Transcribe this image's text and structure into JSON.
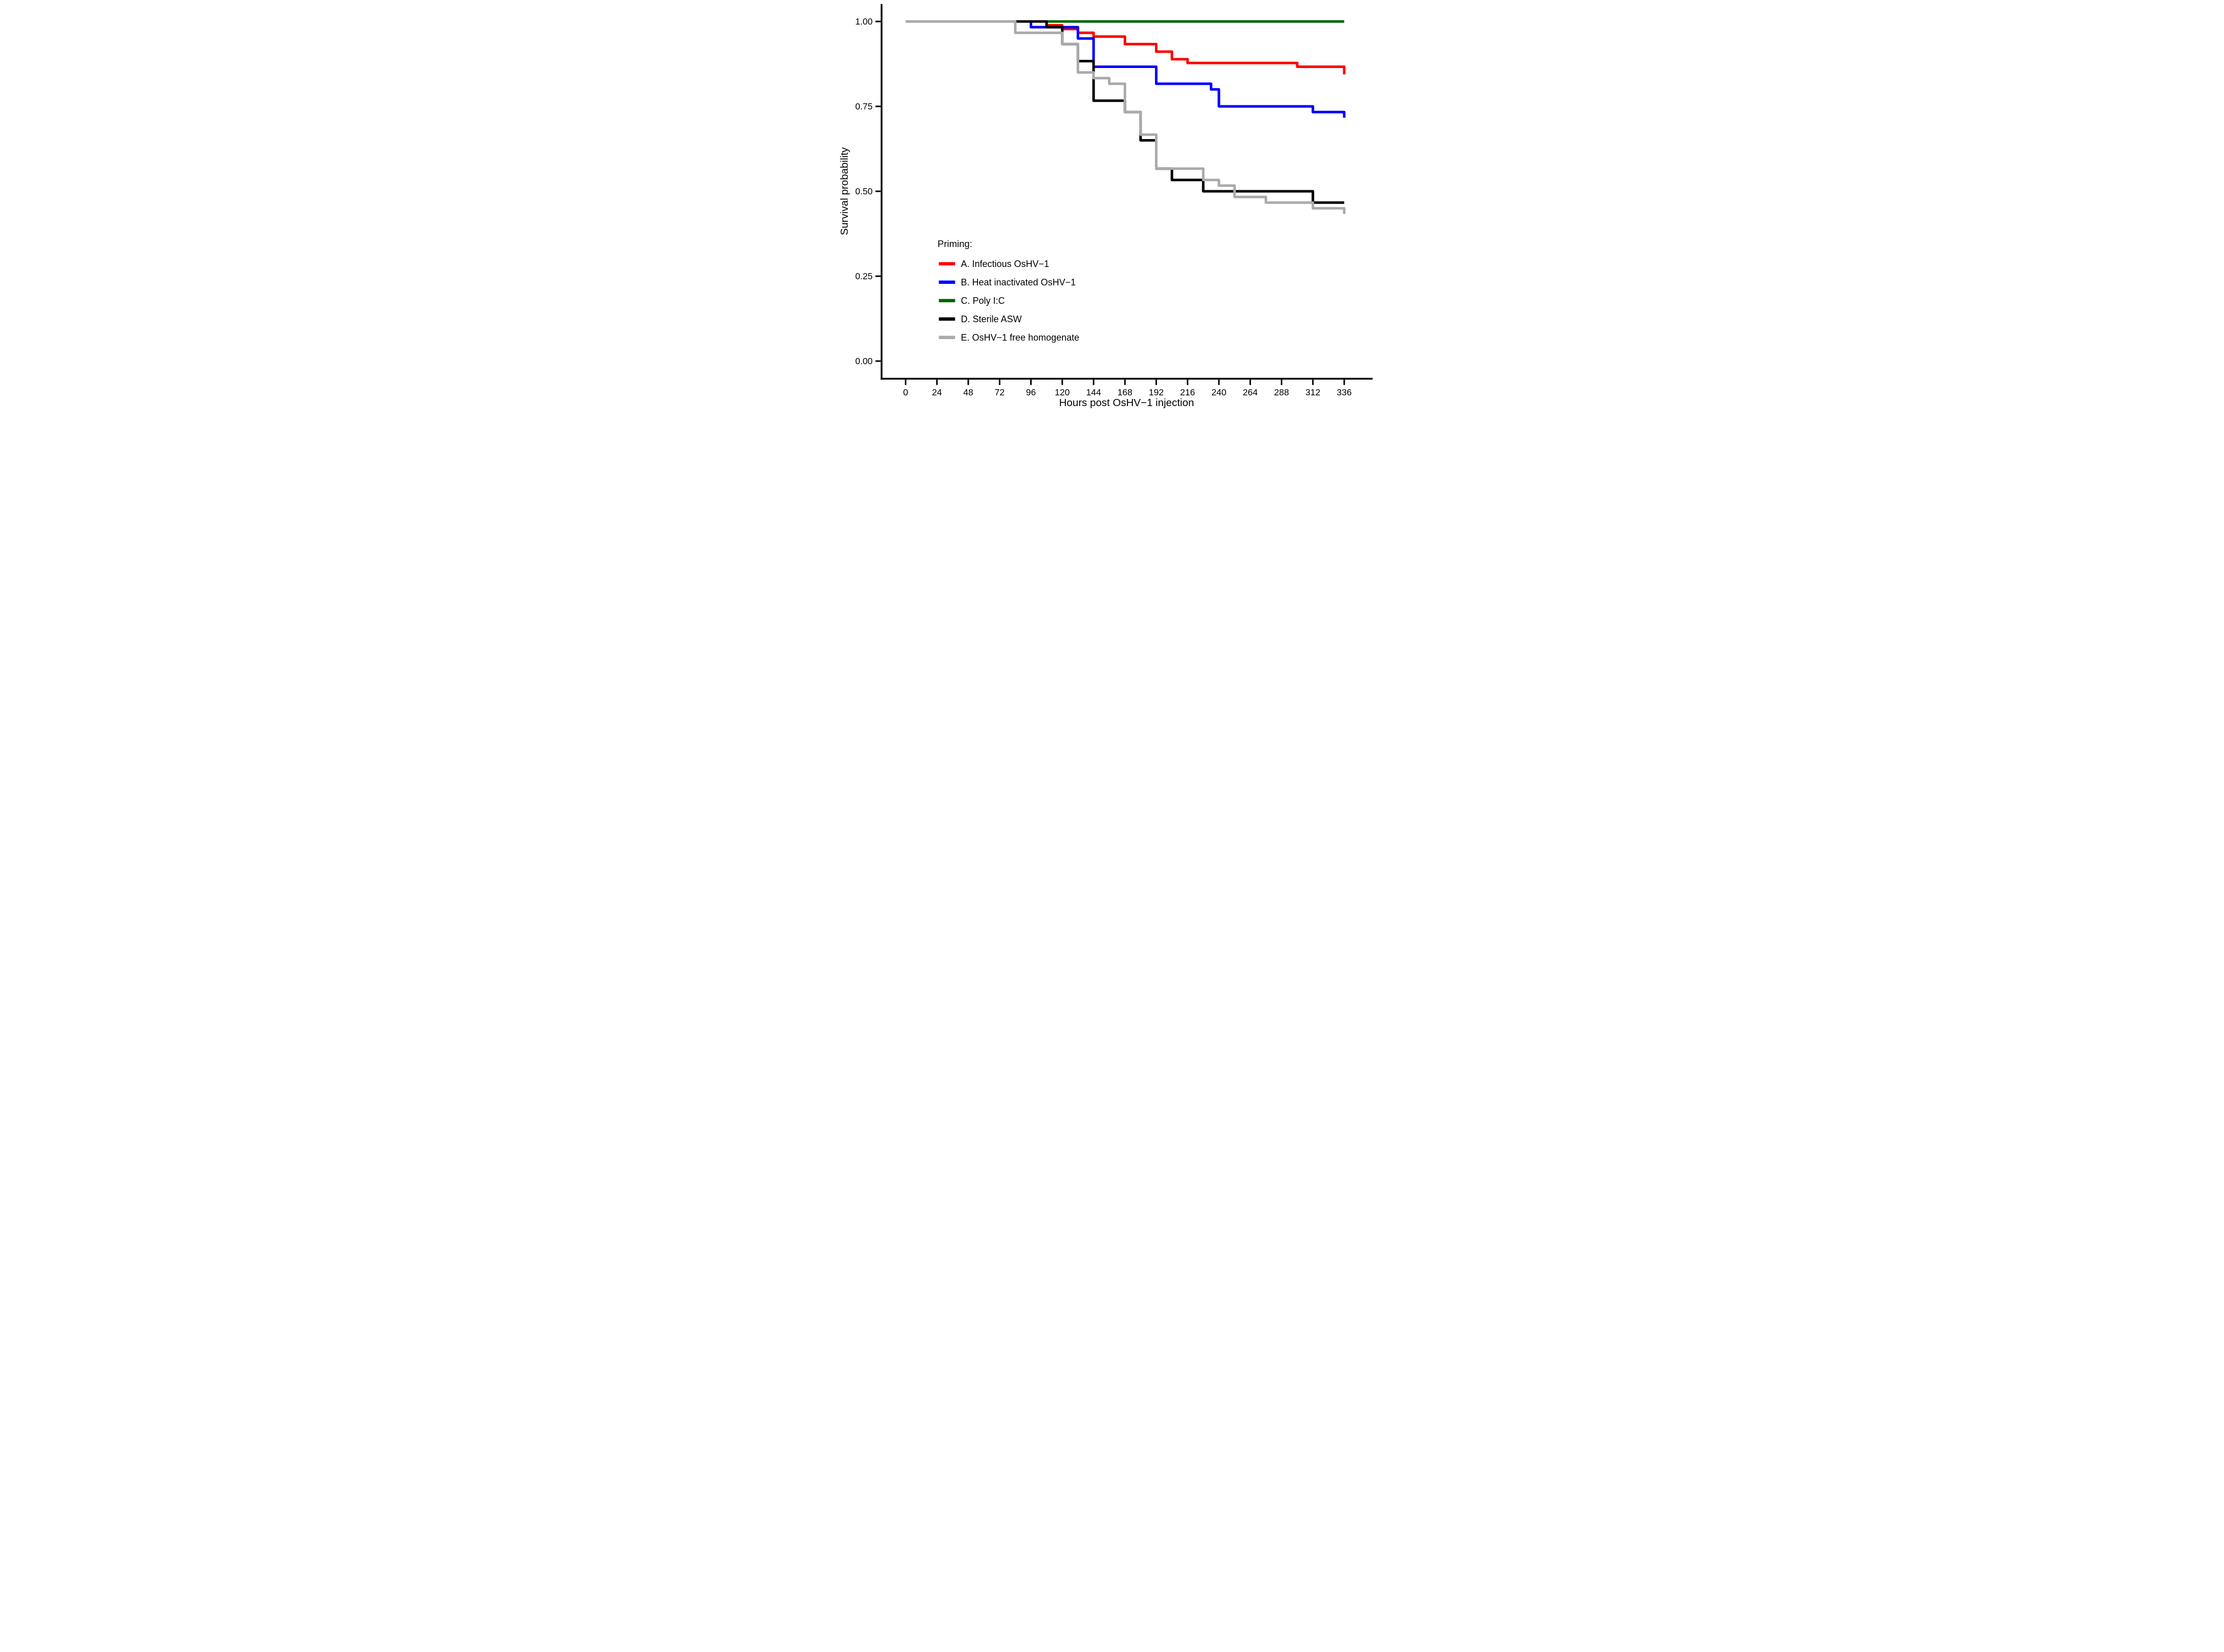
{
  "figure": {
    "description": "Kaplan-Meier survival curves of oysters after OsHV-1 injection, by priming treatment"
  },
  "chart_data": {
    "type": "line",
    "subtype": "kaplan-meier-step",
    "title": "",
    "xlabel": "Hours post OsHV−1 injection",
    "ylabel": "Survival probability",
    "xlim": [
      0,
      336
    ],
    "ylim": [
      0,
      1
    ],
    "grid": false,
    "legend_title": "Priming:",
    "legend_position": "inside lower-left",
    "x_ticks": [
      0,
      24,
      48,
      72,
      96,
      120,
      144,
      168,
      192,
      216,
      240,
      264,
      288,
      312,
      336
    ],
    "y_ticks": [
      {
        "v": 1.0,
        "label": "1.00"
      },
      {
        "v": 0.75,
        "label": "0.75"
      },
      {
        "v": 0.5,
        "label": "0.50"
      },
      {
        "v": 0.25,
        "label": "0.25"
      },
      {
        "v": 0.0,
        "label": "0.00"
      }
    ],
    "z_order": [
      2,
      0,
      1,
      3,
      4
    ],
    "series": [
      {
        "name": "A. Infectious OsHV−1",
        "color": "#ff0000",
        "points": [
          [
            0,
            1.0
          ],
          [
            108,
            0.9889
          ],
          [
            120,
            0.9778
          ],
          [
            132,
            0.9667
          ],
          [
            144,
            0.9556
          ],
          [
            168,
            0.9333
          ],
          [
            192,
            0.9111
          ],
          [
            204,
            0.8889
          ],
          [
            216,
            0.8778
          ],
          [
            300,
            0.8667
          ]
        ],
        "end_hour": 336,
        "final_drop_value": 0.8444
      },
      {
        "name": "B. Heat inactivated OsHV−1",
        "color": "#0000ff",
        "points": [
          [
            0,
            1.0
          ],
          [
            96,
            0.9833
          ],
          [
            132,
            0.95
          ],
          [
            144,
            0.8667
          ],
          [
            192,
            0.8167
          ],
          [
            234,
            0.8
          ],
          [
            240,
            0.75
          ],
          [
            312,
            0.7333
          ]
        ],
        "end_hour": 336,
        "final_drop_value": 0.7167
      },
      {
        "name": "C. Poly I:C",
        "color": "#006400",
        "points": [
          [
            0,
            1.0
          ]
        ],
        "end_hour": 336,
        "final_drop_value": null
      },
      {
        "name": "D. Sterile ASW",
        "color": "#000000",
        "points": [
          [
            0,
            1.0
          ],
          [
            108,
            0.9833
          ],
          [
            120,
            0.9333
          ],
          [
            132,
            0.8833
          ],
          [
            144,
            0.7667
          ],
          [
            168,
            0.7333
          ],
          [
            180,
            0.65
          ],
          [
            192,
            0.5667
          ],
          [
            204,
            0.5333
          ],
          [
            228,
            0.5
          ],
          [
            312,
            0.4667
          ]
        ],
        "end_hour": 336,
        "final_drop_value": null
      },
      {
        "name": "E. OsHV−1 free homogenate",
        "color": "#aaaaaa",
        "points": [
          [
            0,
            1.0
          ],
          [
            84,
            0.9667
          ],
          [
            120,
            0.9333
          ],
          [
            132,
            0.85
          ],
          [
            144,
            0.8333
          ],
          [
            156,
            0.8167
          ],
          [
            168,
            0.7333
          ],
          [
            180,
            0.6667
          ],
          [
            192,
            0.5667
          ],
          [
            228,
            0.5333
          ],
          [
            240,
            0.5167
          ],
          [
            252,
            0.4833
          ],
          [
            276,
            0.4667
          ],
          [
            312,
            0.45
          ]
        ],
        "end_hour": 336,
        "final_drop_value": 0.4333
      }
    ]
  }
}
